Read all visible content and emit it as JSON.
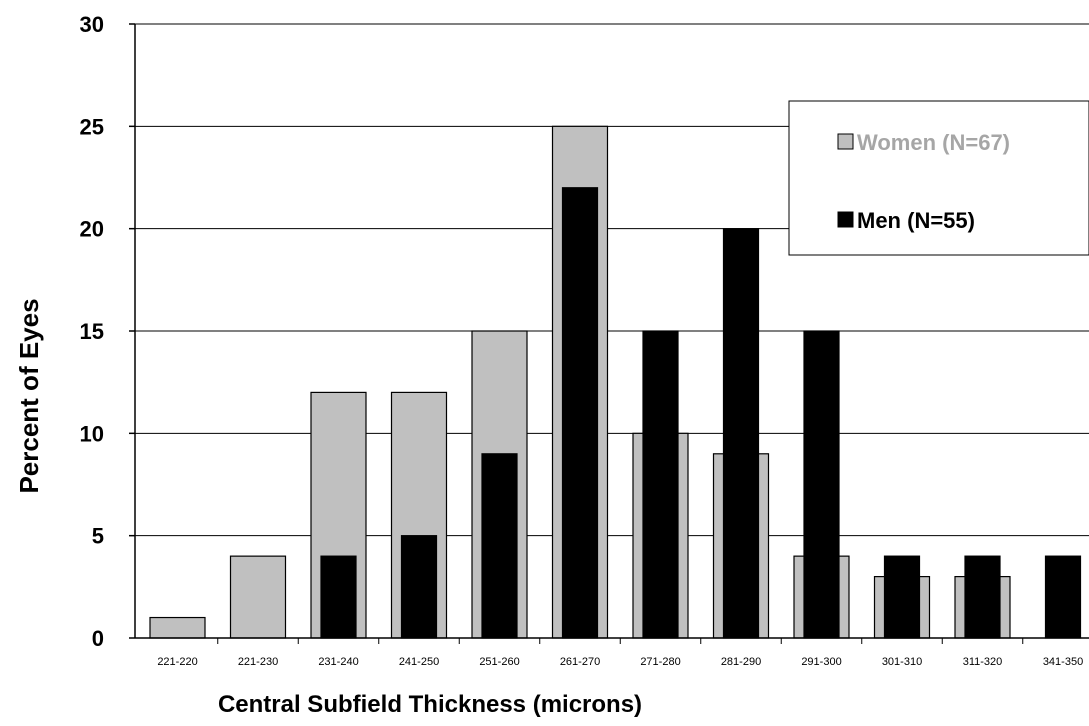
{
  "chart_data": {
    "type": "bar",
    "title": "",
    "xlabel": "Central Subfield Thickness (microns)",
    "ylabel": "Percent of Eyes",
    "ylim": [
      0,
      30
    ],
    "yticks": [
      0,
      5,
      10,
      15,
      20,
      25,
      30
    ],
    "grid": true,
    "legend_position": "top-right",
    "categories": [
      "221-220",
      "221-230",
      "231-240",
      "241-250",
      "251-260",
      "261-270",
      "271-280",
      "281-290",
      "291-300",
      "301-310",
      "311-320",
      "341-350"
    ],
    "series": [
      {
        "name": "Women (N=67)",
        "color": "#c0c0c0",
        "values": [
          1,
          4,
          12,
          12,
          15,
          25,
          10,
          9,
          4,
          3,
          3,
          0
        ]
      },
      {
        "name": "Men (N=55)",
        "color": "#000000",
        "values": [
          0,
          0,
          4,
          5,
          9,
          22,
          15,
          20,
          15,
          4,
          4,
          4
        ]
      }
    ]
  }
}
